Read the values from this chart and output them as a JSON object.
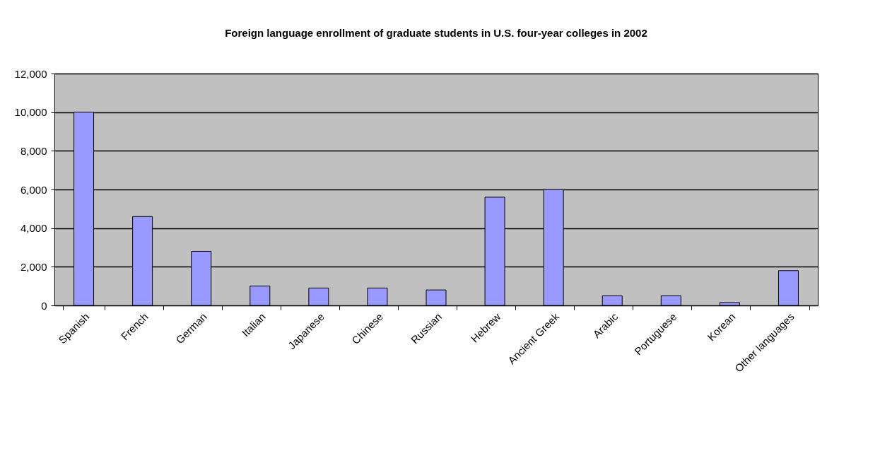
{
  "chart_data": {
    "type": "bar",
    "title": "Foreign language enrollment of graduate students in U.S. four-year colleges in 2002",
    "categories": [
      "Spanish",
      "French",
      "German",
      "Italian",
      "Japanese",
      "Chinese",
      "Russian",
      "Hebrew",
      "Ancient Greek",
      "Arabic",
      "Portuguese",
      "Korean",
      "Other languages"
    ],
    "values": [
      10000,
      4600,
      2800,
      1000,
      900,
      900,
      800,
      5600,
      6000,
      500,
      500,
      150,
      1800
    ],
    "color": "#9999ff",
    "ylim": [
      0,
      12000
    ],
    "yticks": [
      {
        "value": 0,
        "label": "0"
      },
      {
        "value": 2000,
        "label": "2,000"
      },
      {
        "value": 4000,
        "label": "4,000"
      },
      {
        "value": 6000,
        "label": "6,000"
      },
      {
        "value": 8000,
        "label": "8,000"
      },
      {
        "value": 10000,
        "label": "10,000"
      },
      {
        "value": 12000,
        "label": "12,000"
      }
    ],
    "grid": "y",
    "legend": false
  }
}
